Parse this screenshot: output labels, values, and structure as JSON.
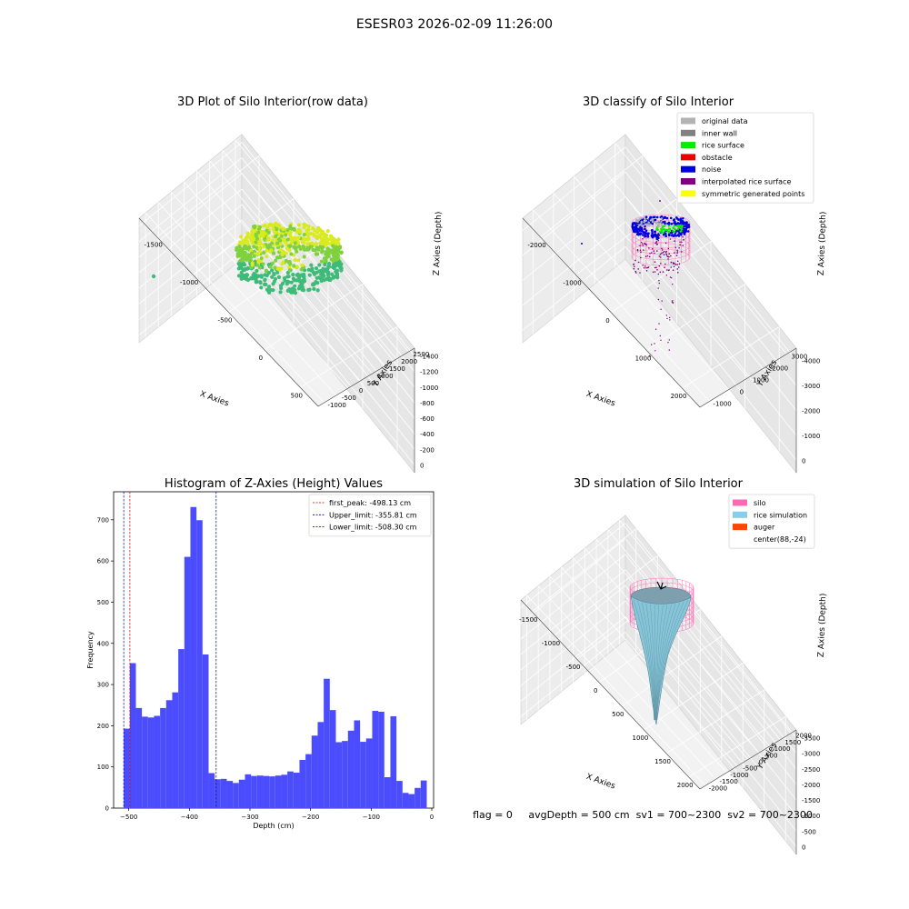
{
  "figure": {
    "suptitle": "ESESR03 2026-02-09 11:26:00",
    "status_line": "flag = 0     avgDepth = 500 cm  sv1 = 700~2300  sv2 = 700~2300"
  },
  "chart_data": [
    {
      "type": "scatter",
      "title": "3D Plot of Silo Interior(row data)",
      "xlabel": "X Axies",
      "ylabel": "Y Axies",
      "zlabel": "Z Axies (Depth)",
      "x_ticks": [
        "-1500",
        "-1000",
        "-500",
        "0",
        "500"
      ],
      "y_ticks": [
        "-1000",
        "-500",
        "0",
        "500",
        "1000",
        "1500",
        "2000",
        "2500"
      ],
      "z_ticks": [
        "0",
        "-200",
        "-400",
        "-600",
        "-800",
        "-1000",
        "-1200",
        "-1400"
      ],
      "colors": {
        "high": "#d9ea1f",
        "mid": "#7fd13e",
        "low": "#3ebb78"
      }
    },
    {
      "type": "scatter",
      "title": "3D classify of Silo Interior",
      "xlabel": "X Axies",
      "ylabel": "Y Axies",
      "zlabel": "Z Axies (Depth)",
      "x_ticks": [
        "-2000",
        "-1000",
        "0",
        "1000",
        "2000"
      ],
      "y_ticks": [
        "-1000",
        "0",
        "1000",
        "2000",
        "3000"
      ],
      "z_ticks": [
        "0",
        "-1000",
        "-2000",
        "-3000",
        "-4000"
      ],
      "legend": [
        {
          "label": "original data",
          "color": "#b3b3b3"
        },
        {
          "label": "inner wall",
          "color": "#808080"
        },
        {
          "label": "rice surface",
          "color": "#00ee00"
        },
        {
          "label": "obstacle",
          "color": "#ee0000"
        },
        {
          "label": "noise",
          "color": "#0000dd"
        },
        {
          "label": "interpolated rice surface",
          "color": "#800080"
        },
        {
          "label": "symmetric generated points",
          "color": "#ffff00"
        }
      ],
      "legend_position": "top-right"
    },
    {
      "type": "bar",
      "title": "Histogram of Z-Axies (Height) Values",
      "xlabel": "Depth (cm)",
      "ylabel": "Frequency",
      "xlim": [
        -525,
        3
      ],
      "ylim": [
        0,
        768
      ],
      "x_ticks": [
        -500,
        -400,
        -300,
        -200,
        -100,
        0
      ],
      "y_ticks": [
        0,
        100,
        200,
        300,
        400,
        500,
        600,
        700
      ],
      "bin_start": -508.3,
      "bin_width": 10,
      "values": [
        193,
        352,
        243,
        222,
        220,
        224,
        243,
        262,
        281,
        386,
        610,
        731,
        699,
        373,
        85,
        70,
        71,
        66,
        61,
        69,
        82,
        78,
        79,
        78,
        77,
        79,
        81,
        89,
        86,
        117,
        131,
        176,
        209,
        314,
        238,
        160,
        163,
        188,
        213,
        161,
        169,
        236,
        234,
        75,
        223,
        66,
        37,
        34,
        49,
        67
      ],
      "bar_color": "#4c4cff",
      "vlines": [
        {
          "label": "first_peak: -498.13 cm",
          "x": -498.13,
          "color": "#cc0000"
        },
        {
          "label": "Upper_limit: -355.81 cm",
          "x": -355.81,
          "color": "#000099"
        },
        {
          "label": "Lower_limit: -508.30 cm",
          "x": -508.3,
          "color": "#000099"
        }
      ],
      "legend_position": "top-right"
    },
    {
      "type": "surface",
      "title": "3D simulation of Silo Interior",
      "xlabel": "X Axies",
      "ylabel": "Y Axies",
      "zlabel": "Z Axies (Depth)",
      "x_ticks": [
        "-1500",
        "-1000",
        "-500",
        "0",
        "500",
        "1000",
        "1500",
        "2000"
      ],
      "y_ticks": [
        "-2000",
        "-1500",
        "-1000",
        "-500",
        "0",
        "500",
        "1000",
        "1500",
        "2000"
      ],
      "z_ticks": [
        "0",
        "-500",
        "-1000",
        "-1500",
        "-2000",
        "-2500",
        "-3000",
        "-3500"
      ],
      "legend": [
        {
          "label": "silo",
          "color": "#ff69b4"
        },
        {
          "label": "rice simulation",
          "color": "#87ceeb"
        },
        {
          "label": "auger",
          "color": "#ff4500"
        },
        {
          "label": "center(88,-24)",
          "color": ""
        }
      ],
      "legend_position": "top-right"
    }
  ]
}
